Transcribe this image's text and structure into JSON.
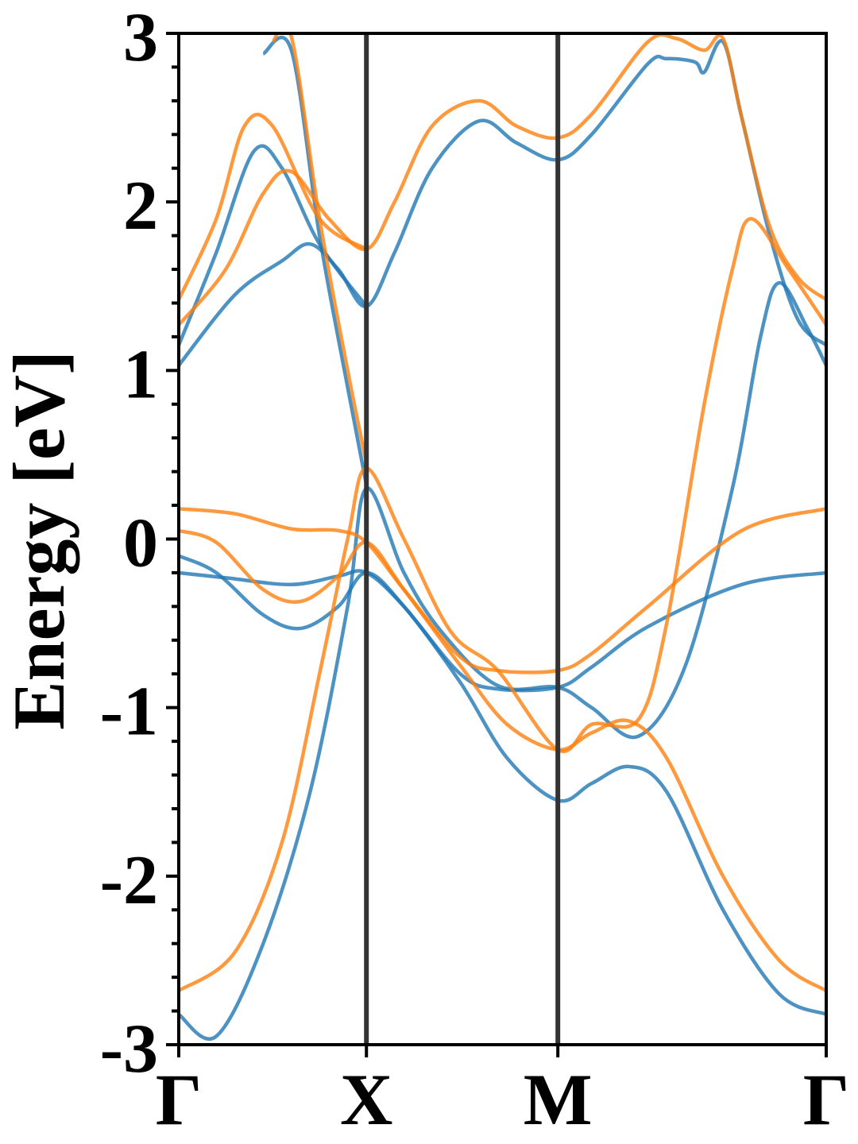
{
  "chart_data": {
    "type": "line",
    "title": "",
    "ylabel": "Energy [eV]",
    "xlabel": "",
    "ylim": [
      -3,
      3
    ],
    "yticks": [
      {
        "value": -3,
        "label": "-3"
      },
      {
        "value": -2,
        "label": "-2"
      },
      {
        "value": -1,
        "label": "-1"
      },
      {
        "value": 0,
        "label": "0"
      },
      {
        "value": 1,
        "label": "1"
      },
      {
        "value": 2,
        "label": "2"
      },
      {
        "value": 3,
        "label": "3"
      }
    ],
    "xticks": [
      {
        "value": 0,
        "label": "Γ"
      },
      {
        "value": 1,
        "label": "X"
      },
      {
        "value": 2.02,
        "label": "M"
      },
      {
        "value": 3.45,
        "label": "Γ"
      }
    ],
    "xlim": [
      0,
      3.45
    ],
    "vlines": [
      1,
      2.02
    ],
    "grid": false,
    "legend": "none",
    "colors": {
      "series_blue": "#1f77b4",
      "series_orange": "#ff7f0e",
      "vline": "#333333",
      "axis": "#000000"
    },
    "series": [
      {
        "group": "blue",
        "points": [
          [
            0,
            -0.2
          ],
          [
            0.25,
            -0.23
          ],
          [
            0.6,
            -0.27
          ],
          [
            0.85,
            -0.22
          ],
          [
            1,
            -0.2
          ],
          [
            1.2,
            -0.4
          ],
          [
            1.5,
            -0.8
          ],
          [
            1.7,
            -0.89
          ],
          [
            2.02,
            -0.88
          ],
          [
            2.2,
            -0.76
          ],
          [
            2.5,
            -0.52
          ],
          [
            3.0,
            -0.27
          ],
          [
            3.45,
            -0.2
          ]
        ]
      },
      {
        "group": "blue",
        "points": [
          [
            0,
            -0.1
          ],
          [
            0.2,
            -0.2
          ],
          [
            0.45,
            -0.45
          ],
          [
            0.65,
            -0.53
          ],
          [
            0.85,
            -0.4
          ],
          [
            1,
            -0.2
          ],
          [
            1.2,
            -0.4
          ],
          [
            1.5,
            -0.85
          ],
          [
            1.75,
            -1.3
          ],
          [
            2.02,
            -1.55
          ],
          [
            2.2,
            -1.45
          ],
          [
            2.4,
            -1.35
          ],
          [
            2.6,
            -1.5
          ],
          [
            2.9,
            -2.2
          ],
          [
            3.2,
            -2.7
          ],
          [
            3.45,
            -2.82
          ]
        ]
      },
      {
        "group": "blue",
        "points": [
          [
            0,
            -2.82
          ],
          [
            0.2,
            -2.95
          ],
          [
            0.45,
            -2.4
          ],
          [
            0.7,
            -1.5
          ],
          [
            0.9,
            -0.4
          ],
          [
            1,
            0.3
          ],
          [
            1.2,
            -0.2
          ],
          [
            1.4,
            -0.55
          ],
          [
            1.7,
            -0.87
          ],
          [
            2.02,
            -0.88
          ],
          [
            2.2,
            -1.0
          ],
          [
            2.45,
            -1.17
          ],
          [
            2.7,
            -0.75
          ],
          [
            2.95,
            0.3
          ],
          [
            3.1,
            1.2
          ],
          [
            3.2,
            1.52
          ],
          [
            3.35,
            1.25
          ],
          [
            3.45,
            1.03
          ]
        ]
      },
      {
        "group": "blue",
        "points": [
          [
            0,
            1.03
          ],
          [
            0.3,
            1.45
          ],
          [
            0.55,
            1.65
          ],
          [
            0.7,
            1.75
          ],
          [
            0.85,
            1.6
          ],
          [
            1,
            1.38
          ],
          [
            1.15,
            1.7
          ],
          [
            1.35,
            2.2
          ],
          [
            1.6,
            2.48
          ],
          [
            1.8,
            2.35
          ],
          [
            2.02,
            2.25
          ],
          [
            2.2,
            2.4
          ],
          [
            2.5,
            2.82
          ],
          [
            2.6,
            2.85
          ],
          [
            2.75,
            2.83
          ],
          [
            2.8,
            2.77
          ],
          [
            2.9,
            2.95
          ],
          [
            3.0,
            2.5
          ],
          [
            3.15,
            1.8
          ],
          [
            3.3,
            1.3
          ],
          [
            3.45,
            1.15
          ]
        ]
      },
      {
        "group": "blue",
        "points": [
          [
            0,
            1.15
          ],
          [
            0.2,
            1.7
          ],
          [
            0.4,
            2.3
          ],
          [
            0.55,
            2.2
          ],
          [
            0.75,
            1.75
          ],
          [
            1,
            1.38
          ]
        ]
      },
      {
        "group": "blue",
        "points": [
          [
            0.45,
            2.88
          ],
          [
            0.6,
            2.9
          ],
          [
            0.75,
            1.8
          ],
          [
            0.9,
            0.9
          ],
          [
            1,
            0.32
          ]
        ]
      },
      {
        "group": "orange",
        "points": [
          [
            0,
            0.18
          ],
          [
            0.3,
            0.15
          ],
          [
            0.6,
            0.06
          ],
          [
            0.85,
            0.05
          ],
          [
            1,
            -0.02
          ],
          [
            1.2,
            -0.3
          ],
          [
            1.5,
            -0.7
          ],
          [
            1.7,
            -0.78
          ],
          [
            2.02,
            -0.78
          ],
          [
            2.2,
            -0.68
          ],
          [
            2.5,
            -0.4
          ],
          [
            3.0,
            0.05
          ],
          [
            3.45,
            0.18
          ]
        ]
      },
      {
        "group": "orange",
        "points": [
          [
            0,
            0.05
          ],
          [
            0.2,
            -0.02
          ],
          [
            0.45,
            -0.3
          ],
          [
            0.65,
            -0.37
          ],
          [
            0.85,
            -0.22
          ],
          [
            1,
            -0.02
          ],
          [
            1.2,
            -0.3
          ],
          [
            1.5,
            -0.75
          ],
          [
            1.75,
            -1.1
          ],
          [
            2.02,
            -1.25
          ],
          [
            2.2,
            -1.15
          ],
          [
            2.4,
            -1.08
          ],
          [
            2.6,
            -1.3
          ],
          [
            2.9,
            -2.0
          ],
          [
            3.2,
            -2.5
          ],
          [
            3.45,
            -2.68
          ]
        ]
      },
      {
        "group": "orange",
        "points": [
          [
            0,
            -2.68
          ],
          [
            0.3,
            -2.45
          ],
          [
            0.55,
            -1.8
          ],
          [
            0.75,
            -0.8
          ],
          [
            0.9,
            0.0
          ],
          [
            1,
            0.42
          ],
          [
            1.2,
            0.0
          ],
          [
            1.45,
            -0.55
          ],
          [
            1.7,
            -0.78
          ],
          [
            2.02,
            -1.25
          ],
          [
            2.2,
            -1.1
          ],
          [
            2.45,
            -1.07
          ],
          [
            2.6,
            -0.5
          ],
          [
            2.8,
            0.8
          ],
          [
            2.95,
            1.6
          ],
          [
            3.05,
            1.9
          ],
          [
            3.25,
            1.6
          ],
          [
            3.45,
            1.27
          ]
        ]
      },
      {
        "group": "orange",
        "points": [
          [
            0,
            1.27
          ],
          [
            0.25,
            1.6
          ],
          [
            0.45,
            2.05
          ],
          [
            0.6,
            2.18
          ],
          [
            0.8,
            1.9
          ],
          [
            1,
            1.72
          ],
          [
            1.15,
            2.0
          ],
          [
            1.35,
            2.45
          ],
          [
            1.6,
            2.6
          ],
          [
            1.8,
            2.45
          ],
          [
            2.02,
            2.38
          ],
          [
            2.2,
            2.52
          ],
          [
            2.5,
            2.95
          ],
          [
            2.65,
            2.97
          ],
          [
            2.8,
            2.9
          ],
          [
            2.9,
            2.97
          ],
          [
            3.0,
            2.5
          ],
          [
            3.15,
            1.85
          ],
          [
            3.3,
            1.55
          ],
          [
            3.45,
            1.42
          ]
        ]
      },
      {
        "group": "orange",
        "points": [
          [
            0,
            1.42
          ],
          [
            0.2,
            1.9
          ],
          [
            0.35,
            2.45
          ],
          [
            0.5,
            2.45
          ],
          [
            0.75,
            1.9
          ],
          [
            1,
            1.72
          ]
        ]
      },
      {
        "group": "orange",
        "points": [
          [
            0.5,
            2.95
          ],
          [
            0.6,
            2.98
          ],
          [
            0.75,
            1.9
          ],
          [
            0.9,
            1.0
          ],
          [
            1,
            0.45
          ]
        ]
      }
    ]
  }
}
